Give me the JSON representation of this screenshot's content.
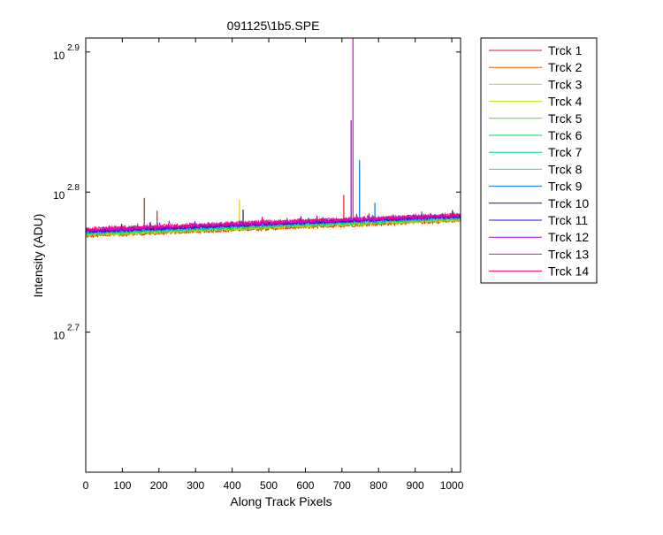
{
  "chart_data": {
    "type": "line",
    "title": "091125\\1b5.SPE",
    "xlabel": "Along Track Pixels",
    "ylabel": "Intensity (ADU)",
    "xlim": [
      0,
      1024
    ],
    "ylim_log10": [
      2.6,
      2.91
    ],
    "yscale": "log",
    "x_ticks": [
      0,
      100,
      200,
      300,
      400,
      500,
      600,
      700,
      800,
      900,
      1000
    ],
    "x_tick_labels": [
      "0",
      "100",
      "200",
      "300",
      "400",
      "500",
      "600",
      "700",
      "800",
      "900",
      "1000"
    ],
    "y_ticks_log10": [
      2.7,
      2.8,
      2.9
    ],
    "y_tick_base": "10",
    "y_tick_exponents": [
      "2.7",
      "2.8",
      "2.9"
    ],
    "grid": false,
    "legend_position": "outside-right",
    "series": [
      {
        "name": "Trck 1",
        "color": "#d7191c",
        "start": 587.0,
        "end": 602.0,
        "spikes": [
          [
            160,
            625
          ],
          [
            195,
            612
          ],
          [
            705,
            628
          ]
        ]
      },
      {
        "name": "Trck 2",
        "color": "#e66101",
        "start": 587.5,
        "end": 602.5,
        "spikes": []
      },
      {
        "name": "Trck 3",
        "color": "#e8c800",
        "start": 588.0,
        "end": 603.0,
        "spikes": [
          [
            420,
            623
          ]
        ]
      },
      {
        "name": "Trck 4",
        "color": "#c8e000",
        "start": 588.5,
        "end": 603.5,
        "spikes": []
      },
      {
        "name": "Trck 5",
        "color": "#66dd00",
        "start": 589.0,
        "end": 604.0,
        "spikes": []
      },
      {
        "name": "Trck 6",
        "color": "#00dd44",
        "start": 589.5,
        "end": 604.5,
        "spikes": []
      },
      {
        "name": "Trck 7",
        "color": "#00d496",
        "start": 590.0,
        "end": 605.0,
        "spikes": []
      },
      {
        "name": "Trck 8",
        "color": "#00e0e0",
        "start": 590.5,
        "end": 605.5,
        "spikes": []
      },
      {
        "name": "Trck 9",
        "color": "#0072e0",
        "start": 591.0,
        "end": 606.0,
        "spikes": [
          [
            748,
            665
          ],
          [
            790,
            620
          ]
        ]
      },
      {
        "name": "Trck 10",
        "color": "#0a1a7a",
        "start": 591.5,
        "end": 606.5,
        "spikes": [
          [
            430,
            613
          ]
        ]
      },
      {
        "name": "Trck 11",
        "color": "#3a00e0",
        "start": 592.0,
        "end": 606.5,
        "spikes": []
      },
      {
        "name": "Trck 12",
        "color": "#a000e0",
        "start": 592.5,
        "end": 607.0,
        "spikes": [
          [
            725,
            710
          ]
        ]
      },
      {
        "name": "Trck 13",
        "color": "#e000e0",
        "start": 593.0,
        "end": 607.5,
        "spikes": [
          [
            730,
            815
          ]
        ]
      },
      {
        "name": "Trck 14",
        "color": "#ff0080",
        "start": 594.0,
        "end": 608.0,
        "spikes": []
      }
    ]
  }
}
